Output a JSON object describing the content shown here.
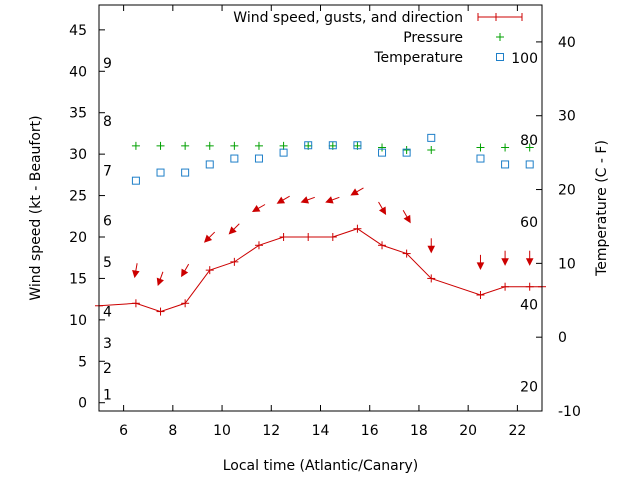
{
  "chart_data": {
    "type": "line",
    "xlabel": "Local time (Atlantic/Canary)",
    "ylabel": "Wind speed (kt - Beaufort)",
    "y2label": "Temperature (C - F)",
    "xlim": [
      5,
      23
    ],
    "ylim": [
      -1,
      48
    ],
    "y2lim": [
      -10,
      45
    ],
    "xticks": [
      6,
      8,
      10,
      12,
      14,
      16,
      18,
      20,
      22
    ],
    "yticks": [
      0,
      5,
      10,
      15,
      20,
      25,
      30,
      35,
      40,
      45
    ],
    "y2ticks": [
      -10,
      0,
      10,
      20,
      30,
      40
    ],
    "beaufort_labels": [
      {
        "label": "1",
        "y": 1
      },
      {
        "label": "2",
        "y": 4.2
      },
      {
        "label": "3",
        "y": 7.2
      },
      {
        "label": "4",
        "y": 11
      },
      {
        "label": "5",
        "y": 17
      },
      {
        "label": "6",
        "y": 22
      },
      {
        "label": "7",
        "y": 28
      },
      {
        "label": "8",
        "y": 34
      },
      {
        "label": "9",
        "y": 41
      }
    ],
    "fahrenheit_labels": [
      {
        "label": "20",
        "y2": -6.7
      },
      {
        "label": "40",
        "y2": 4.4
      },
      {
        "label": "60",
        "y2": 15.6
      },
      {
        "label": "80",
        "y2": 26.7
      },
      {
        "label": "100",
        "y2": 37.8
      }
    ],
    "series": [
      {
        "name": "Wind speed, gusts, and direction",
        "color": "#cc0000",
        "x": [
          5,
          6.5,
          7.5,
          8.5,
          9.5,
          10.5,
          11.5,
          12.5,
          13.5,
          14.5,
          15.5,
          16.5,
          17.5,
          18.5,
          20.5,
          21.5,
          22.5,
          23
        ],
        "y": [
          11.7,
          12,
          11,
          12,
          16,
          17,
          19,
          20,
          20,
          20,
          21,
          19,
          18,
          15,
          13,
          14,
          14,
          14
        ],
        "direction_deg": [
          null,
          10,
          20,
          30,
          45,
          45,
          60,
          60,
          70,
          70,
          60,
          330,
          330,
          0,
          0,
          0,
          0,
          null
        ],
        "arrow_y": [
          null,
          16,
          15,
          16,
          20,
          21,
          23.5,
          24.5,
          24.5,
          24.5,
          25.5,
          23.5,
          22.5,
          19,
          17,
          17.5,
          17.5,
          null
        ]
      },
      {
        "name": "Pressure",
        "color": "#00a000",
        "x": [
          6.5,
          7.5,
          8.5,
          9.5,
          10.5,
          11.5,
          12.5,
          13.5,
          14.5,
          15.5,
          16.5,
          17.5,
          18.5,
          20.5,
          21.5,
          22.5
        ],
        "y": [
          31,
          31,
          31,
          31,
          31,
          31,
          31,
          31,
          31,
          31,
          30.8,
          30.5,
          30.5,
          30.8,
          30.8,
          30.8
        ]
      },
      {
        "name": "Temperature",
        "color": "#1e7fc8",
        "x": [
          6.5,
          7.5,
          8.5,
          9.5,
          10.5,
          11.5,
          12.5,
          13.5,
          14.5,
          15.5,
          16.5,
          17.5,
          18.5,
          20.5,
          21.5,
          22.5
        ],
        "y2": [
          21.2,
          22.3,
          22.3,
          23.4,
          24.2,
          24.2,
          25,
          26,
          26,
          26,
          25,
          25,
          27,
          24.2,
          23.4,
          23.4
        ]
      }
    ],
    "legend_position": "top-right"
  }
}
